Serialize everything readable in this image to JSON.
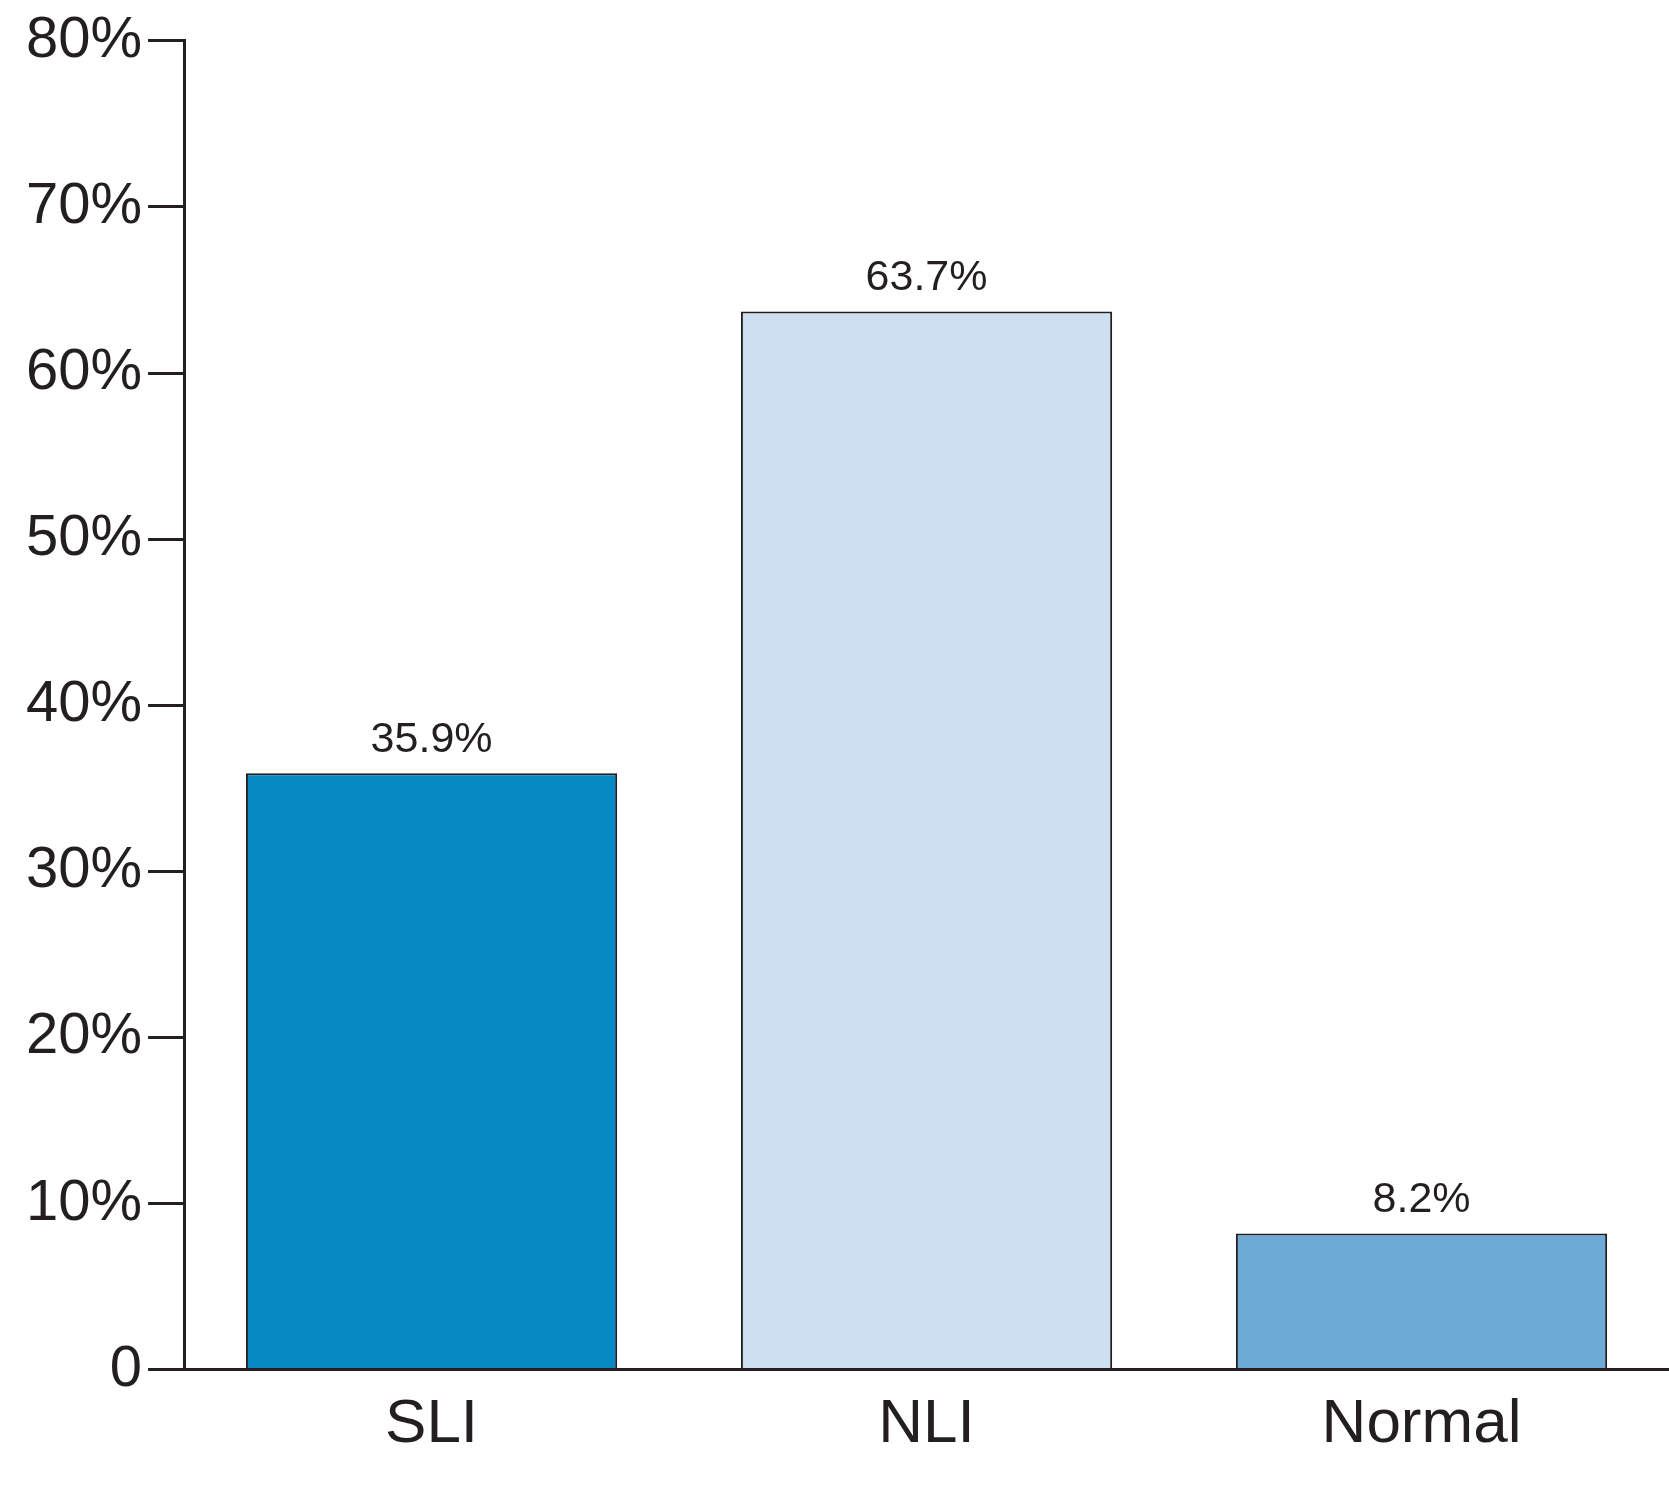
{
  "chart_data": {
    "type": "bar",
    "categories": [
      "SLI",
      "NLI",
      "Normal"
    ],
    "values": [
      35.9,
      63.7,
      8.2
    ],
    "colors": [
      "#0689c2",
      "#cddff0",
      "#6eaad6"
    ],
    "value_labels": [
      "35.9%",
      "63.7%",
      "8.2%"
    ],
    "ylim": [
      0,
      80
    ],
    "yticks": [
      0,
      {
        "value": 10,
        "label": "10%"
      },
      {
        "value": 20,
        "label": "20%"
      },
      {
        "value": 30,
        "label": "30%"
      },
      {
        "value": 40,
        "label": "40%"
      },
      {
        "value": 50,
        "label": "50%"
      },
      {
        "value": 60,
        "label": "60%"
      },
      {
        "value": 70,
        "label": "70%"
      },
      {
        "value": 80,
        "label": "80%"
      }
    ],
    "grid": false,
    "legend": false
  }
}
